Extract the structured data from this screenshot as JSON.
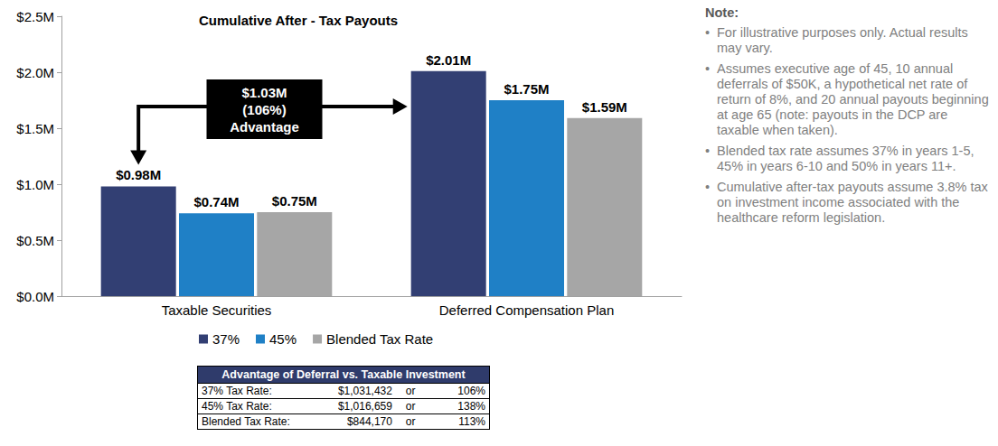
{
  "chart_data": {
    "type": "bar",
    "title": "Cumulative After - Tax Payouts",
    "categories": [
      "Taxable Securities",
      "Deferred Compensation Plan"
    ],
    "series": [
      {
        "name": "37%",
        "color": "#323f73",
        "values": [
          0.98,
          2.01
        ],
        "value_labels": [
          "$0.98M",
          "$2.01M"
        ]
      },
      {
        "name": "45%",
        "color": "#1f80c6",
        "values": [
          0.74,
          1.75
        ],
        "value_labels": [
          "$0.74M",
          "$1.75M"
        ]
      },
      {
        "name": "Blended Tax Rate",
        "color": "#a6a6a6",
        "values": [
          0.75,
          1.59
        ],
        "value_labels": [
          "$0.75M",
          "$1.59M"
        ]
      }
    ],
    "ylim": [
      0,
      2.5
    ],
    "yticks": [
      {
        "value": 0,
        "label": "$0.0M"
      },
      {
        "value": 0.5,
        "label": "$0.5M"
      },
      {
        "value": 1,
        "label": "$1.0M"
      },
      {
        "value": 1.5,
        "label": "$1.5M"
      },
      {
        "value": 2,
        "label": "$2.0M"
      },
      {
        "value": 2.5,
        "label": "$2.5M"
      }
    ],
    "grid": false,
    "legend": "bottom",
    "data_labels": true,
    "annotation": [
      "$1.03M",
      "(106%)",
      "Advantage"
    ]
  },
  "notes": {
    "title": "Note:",
    "items": [
      "For illustrative purposes only. Actual results may vary.",
      "Assumes executive age of 45, 10 annual deferrals of $50K, a hypothetical net rate of return of 8%, and 20 annual payouts beginning at age 65 (note: payouts in the DCP are taxable when taken).",
      "Blended tax rate assumes 37% in years 1-5, 45% in years 6-10 and 50% in years 11+.",
      "Cumulative after-tax payouts assume 3.8% tax on investment income associated with the healthcare reform legislation."
    ],
    "bullet": "•"
  },
  "table": {
    "title": "Advantage of Deferral vs. Taxable Investment",
    "rows": [
      [
        "37% Tax Rate:",
        "$1,031,432",
        "or",
        "106%"
      ],
      [
        "45% Tax Rate:",
        "$1,016,659",
        "or",
        "138%"
      ],
      [
        "Blended Tax Rate:",
        "$844,170",
        "or",
        "113%"
      ]
    ]
  }
}
